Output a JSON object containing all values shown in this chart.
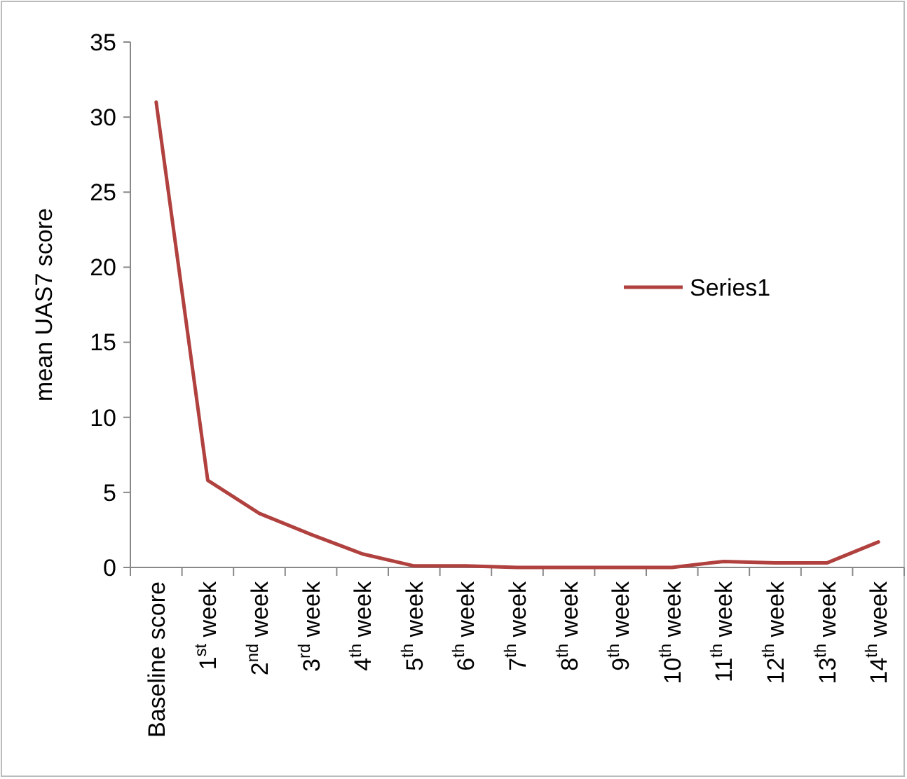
{
  "chart_data": {
    "type": "line",
    "ylabel": "mean UAS7 score",
    "categories": [
      "Baseline score",
      "1$^{st}$ week",
      "2$^{nd}$ week",
      "3$^{rd}$ week",
      "4$^{th}$ week",
      "5$^{th}$ week",
      "6$^{th}$ week",
      "7$^{th}$ week",
      "8$^{th}$ week",
      "9$^{th}$ week",
      "10$^{th}$ week",
      "11$^{th}$ week",
      "12$^{th}$ week",
      "13$^{th}$ week",
      "14$^{th}$ week"
    ],
    "series": [
      {
        "name": "Series1",
        "color": "#b0413e",
        "values": [
          31,
          5.8,
          3.6,
          2.2,
          0.9,
          0.1,
          0.1,
          0,
          0,
          0,
          0,
          0.4,
          0.3,
          0.3,
          1.7
        ]
      }
    ],
    "ylim": [
      0,
      35
    ],
    "yticks": [
      0,
      5,
      10,
      15,
      20,
      25,
      30,
      35
    ],
    "grid": false,
    "legend": "right",
    "marker": "none",
    "line_style": "solid"
  }
}
